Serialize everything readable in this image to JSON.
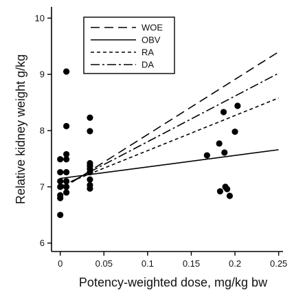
{
  "chart_data": {
    "type": "scatter",
    "title": "",
    "xlabel": "Potency-weighted dose, mg/kg bw",
    "ylabel": "Relative kidney weight g/kg",
    "xlim": [
      -0.01,
      0.255
    ],
    "ylim": [
      5.85,
      10.2
    ],
    "x_ticks": [
      0,
      0.05,
      0.1,
      0.15,
      0.2,
      0.25
    ],
    "x_tick_labels": [
      "0",
      "0.05",
      "0.1",
      "0.15",
      "0.2",
      "0.25"
    ],
    "y_ticks": [
      6,
      7,
      8,
      9,
      10
    ],
    "y_tick_labels": [
      "6",
      "7",
      "8",
      "9",
      "10"
    ],
    "grid": false,
    "legend_position": "top-left",
    "points": [
      {
        "x": 0.0,
        "y": 7.49
      },
      {
        "x": 0.0,
        "y": 7.26
      },
      {
        "x": 0.0,
        "y": 7.1
      },
      {
        "x": 0.0,
        "y": 7.0
      },
      {
        "x": 0.0,
        "y": 6.85
      },
      {
        "x": 0.0,
        "y": 6.8
      },
      {
        "x": 0.0,
        "y": 6.5
      },
      {
        "x": 0.007,
        "y": 9.05
      },
      {
        "x": 0.007,
        "y": 8.08
      },
      {
        "x": 0.007,
        "y": 7.58
      },
      {
        "x": 0.007,
        "y": 7.49
      },
      {
        "x": 0.007,
        "y": 7.26
      },
      {
        "x": 0.007,
        "y": 7.1
      },
      {
        "x": 0.007,
        "y": 7.0
      },
      {
        "x": 0.007,
        "y": 6.9
      },
      {
        "x": 0.034,
        "y": 8.23
      },
      {
        "x": 0.034,
        "y": 7.99
      },
      {
        "x": 0.034,
        "y": 7.42
      },
      {
        "x": 0.034,
        "y": 7.37
      },
      {
        "x": 0.034,
        "y": 7.32
      },
      {
        "x": 0.034,
        "y": 7.26
      },
      {
        "x": 0.034,
        "y": 7.13
      },
      {
        "x": 0.034,
        "y": 7.03
      },
      {
        "x": 0.034,
        "y": 6.97
      },
      {
        "x": 0.168,
        "y": 7.56
      },
      {
        "x": 0.182,
        "y": 7.77
      },
      {
        "x": 0.183,
        "y": 6.92
      },
      {
        "x": 0.187,
        "y": 8.33
      },
      {
        "x": 0.188,
        "y": 7.61
      },
      {
        "x": 0.189,
        "y": 7.0
      },
      {
        "x": 0.191,
        "y": 6.96
      },
      {
        "x": 0.194,
        "y": 6.84
      },
      {
        "x": 0.2,
        "y": 7.98
      },
      {
        "x": 0.203,
        "y": 8.44
      }
    ],
    "lines": [
      {
        "name": "WOE",
        "dash": "long-dash",
        "x": [
          0,
          0.25
        ],
        "y": [
          6.95,
          9.4
        ]
      },
      {
        "name": "OBV",
        "dash": "solid",
        "x": [
          0,
          0.25
        ],
        "y": [
          7.15,
          7.66
        ]
      },
      {
        "name": "RA",
        "dash": "short-dash",
        "x": [
          0,
          0.25
        ],
        "y": [
          7.02,
          8.58
        ]
      },
      {
        "name": "DA",
        "dash": "dash-dot",
        "x": [
          0,
          0.25
        ],
        "y": [
          6.99,
          9.02
        ]
      }
    ]
  }
}
